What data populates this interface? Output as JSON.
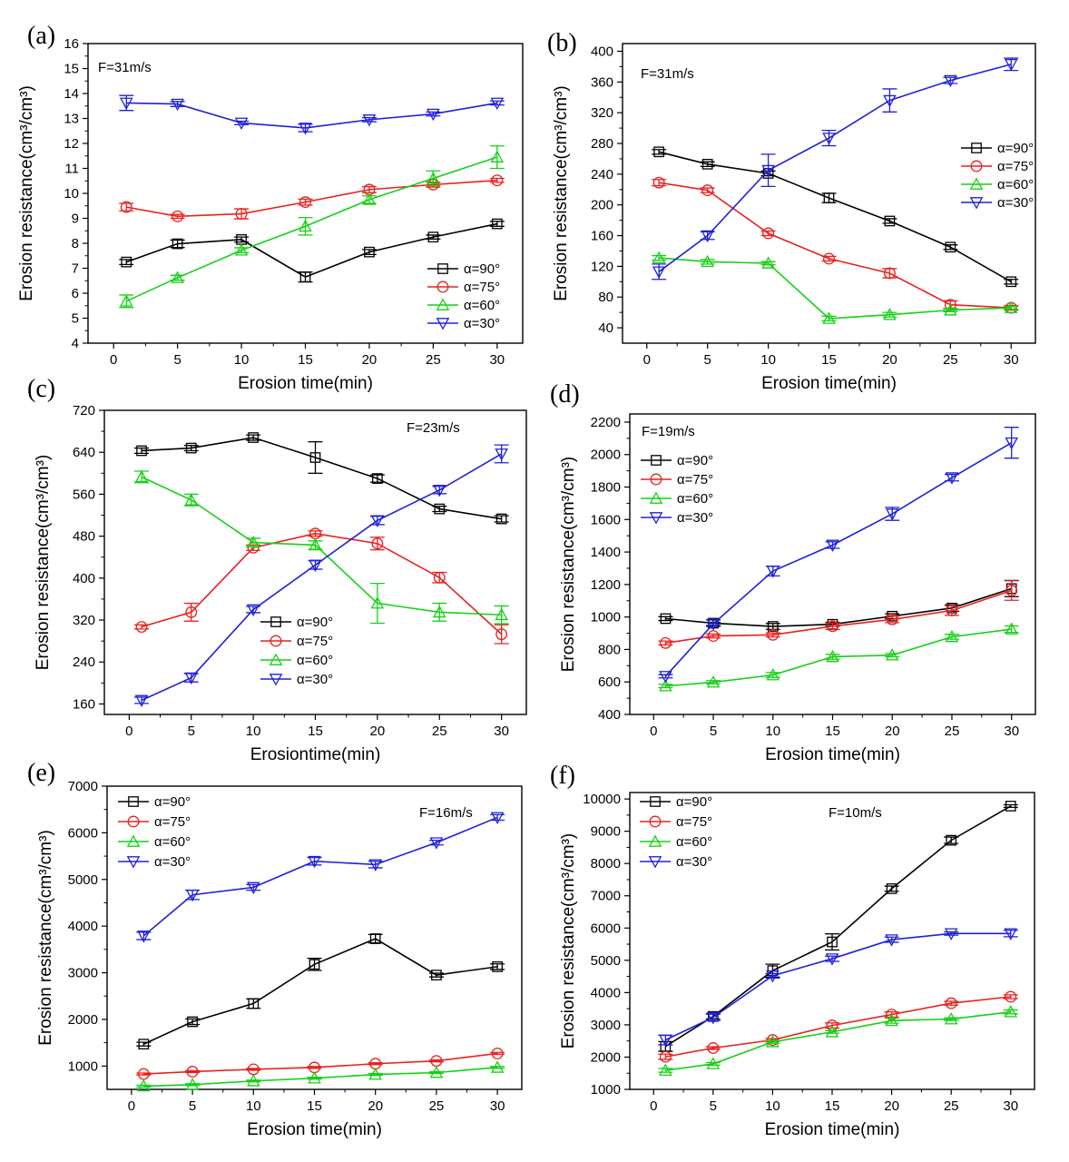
{
  "chart_data": [
    {
      "type": "line",
      "panel_label": "(a)",
      "annotation": "F=31m/s",
      "xlabel": "Erosion time(min)",
      "ylabel": "Erosion resistance(cm³/cm³)",
      "xlim": [
        -2,
        32
      ],
      "ylim": [
        4,
        16
      ],
      "xticks": [
        "0",
        "5",
        "10",
        "15",
        "20",
        "25",
        "30"
      ],
      "yticks": [
        "4",
        "5",
        "6",
        "7",
        "8",
        "9",
        "10",
        "11",
        "12",
        "13",
        "14",
        "15",
        "16"
      ],
      "x": [
        1,
        5,
        10,
        15,
        20,
        25,
        30
      ],
      "legend_position": "bottom-right",
      "series": [
        {
          "name": "α=90°",
          "color": "#000000",
          "marker": "square",
          "values": [
            7.25,
            7.98,
            8.15,
            6.65,
            7.65,
            8.25,
            8.78
          ],
          "errors": [
            0.1,
            0.15,
            0.1,
            0.2,
            0.1,
            0.08,
            0.1
          ]
        },
        {
          "name": "α=75°",
          "color": "#e8211e",
          "marker": "circle",
          "values": [
            9.45,
            9.08,
            9.18,
            9.65,
            10.15,
            10.35,
            10.52
          ],
          "errors": [
            0.15,
            0.08,
            0.2,
            0.12,
            0.12,
            0.1,
            0.08
          ]
        },
        {
          "name": "α=60°",
          "color": "#14d114",
          "marker": "triangle-up",
          "values": [
            5.68,
            6.62,
            7.72,
            8.68,
            9.75,
            10.6,
            11.45
          ],
          "errors": [
            0.25,
            0.1,
            0.1,
            0.35,
            0.15,
            0.3,
            0.45
          ]
        },
        {
          "name": "α=30°",
          "color": "#1f20d9",
          "marker": "triangle-down",
          "values": [
            13.62,
            13.58,
            12.82,
            12.62,
            12.95,
            13.18,
            13.62
          ],
          "errors": [
            0.3,
            0.1,
            0.07,
            0.15,
            0.08,
            0.08,
            0.08
          ]
        }
      ]
    },
    {
      "type": "line",
      "panel_label": "(b)",
      "annotation": "F=31m/s",
      "xlabel": "Erosion time(min)",
      "ylabel": "Erosion resistance(cm³/cm³)",
      "xlim": [
        -2,
        32
      ],
      "ylim": [
        20,
        410
      ],
      "xticks": [
        "0",
        "5",
        "10",
        "15",
        "20",
        "25",
        "30"
      ],
      "yticks": [
        "40",
        "80",
        "120",
        "160",
        "200",
        "240",
        "280",
        "320",
        "360",
        "400"
      ],
      "x": [
        1,
        5,
        10,
        15,
        20,
        25,
        30
      ],
      "legend_position": "right-middle",
      "series": [
        {
          "name": "α=90°",
          "color": "#000000",
          "marker": "square",
          "values": [
            269,
            253,
            241,
            209,
            179,
            145,
            100
          ],
          "errors": [
            3,
            3,
            3,
            6,
            3,
            3,
            3
          ]
        },
        {
          "name": "α=75°",
          "color": "#e8211e",
          "marker": "circle",
          "values": [
            229,
            219,
            163,
            130,
            111,
            70,
            66
          ],
          "errors": [
            4,
            3,
            3,
            3,
            6,
            5,
            3
          ]
        },
        {
          "name": "α=60°",
          "color": "#14d114",
          "marker": "triangle-up",
          "values": [
            131,
            126,
            124,
            52,
            57,
            63,
            66
          ],
          "errors": [
            3,
            3,
            2,
            3,
            3,
            2,
            2
          ]
        },
        {
          "name": "α=30°",
          "color": "#1f20d9",
          "marker": "triangle-down",
          "values": [
            113,
            160,
            245,
            287,
            336,
            362,
            383
          ],
          "errors": [
            10,
            5,
            21,
            10,
            15,
            4,
            8
          ]
        }
      ]
    },
    {
      "type": "line",
      "panel_label": "(c)",
      "annotation": "F=23m/s",
      "xlabel": "Erosiontime(min)",
      "ylabel": "Erosion resistance(cm³/cm³)",
      "xlim": [
        -2,
        32
      ],
      "ylim": [
        140,
        720
      ],
      "xticks": [
        "0",
        "5",
        "10",
        "15",
        "20",
        "25",
        "30"
      ],
      "yticks": [
        "160",
        "240",
        "320",
        "400",
        "480",
        "560",
        "640",
        "720"
      ],
      "x": [
        1,
        5,
        10,
        15,
        20,
        25,
        30
      ],
      "legend_position": "center-left",
      "series": [
        {
          "name": "α=90°",
          "color": "#000000",
          "marker": "square",
          "values": [
            643,
            648,
            668,
            630,
            590,
            532,
            513
          ],
          "errors": [
            5,
            5,
            5,
            30,
            7,
            5,
            6
          ]
        },
        {
          "name": "α=75°",
          "color": "#e8211e",
          "marker": "circle",
          "values": [
            307,
            335,
            458,
            485,
            466,
            401,
            293
          ],
          "errors": [
            4,
            17,
            5,
            5,
            12,
            10,
            18
          ]
        },
        {
          "name": "α=60°",
          "color": "#14d114",
          "marker": "triangle-up",
          "values": [
            593,
            549,
            468,
            463,
            352,
            335,
            330
          ],
          "errors": [
            11,
            11,
            8,
            8,
            38,
            17,
            17
          ]
        },
        {
          "name": "α=30°",
          "color": "#1f20d9",
          "marker": "triangle-down",
          "values": [
            167,
            210,
            340,
            425,
            510,
            568,
            637
          ],
          "errors": [
            6,
            8,
            6,
            8,
            8,
            7,
            17
          ]
        }
      ]
    },
    {
      "type": "line",
      "panel_label": "(d)",
      "annotation": "F=19m/s",
      "xlabel": "Erosion time(min)",
      "ylabel": "Erosion resistance(cm³/cm³)",
      "xlim": [
        -2,
        32
      ],
      "ylim": [
        400,
        2250
      ],
      "xticks": [
        "0",
        "5",
        "10",
        "15",
        "20",
        "25",
        "30"
      ],
      "yticks": [
        "400",
        "600",
        "800",
        "1000",
        "1200",
        "1400",
        "1600",
        "1800",
        "2000",
        "2200"
      ],
      "x": [
        1,
        5,
        10,
        15,
        20,
        25,
        30
      ],
      "legend_position": "top-left",
      "series": [
        {
          "name": "α=90°",
          "color": "#000000",
          "marker": "square",
          "values": [
            990,
            962,
            942,
            955,
            1005,
            1055,
            1175
          ],
          "errors": [
            12,
            20,
            18,
            12,
            15,
            20,
            50
          ]
        },
        {
          "name": "α=75°",
          "color": "#e8211e",
          "marker": "circle",
          "values": [
            840,
            883,
            890,
            943,
            985,
            1040,
            1163
          ],
          "errors": [
            12,
            12,
            12,
            20,
            20,
            30,
            60
          ]
        },
        {
          "name": "α=60°",
          "color": "#14d114",
          "marker": "triangle-up",
          "values": [
            575,
            598,
            643,
            755,
            765,
            878,
            925
          ],
          "errors": [
            10,
            10,
            15,
            15,
            10,
            15,
            20
          ]
        },
        {
          "name": "α=30°",
          "color": "#1f20d9",
          "marker": "triangle-down",
          "values": [
            635,
            958,
            1283,
            1443,
            1635,
            1858,
            2073
          ],
          "errors": [
            10,
            10,
            30,
            20,
            40,
            20,
            95
          ]
        }
      ]
    },
    {
      "type": "line",
      "panel_label": "(e)",
      "annotation": "F=16m/s",
      "xlabel": "Erosion time(min)",
      "ylabel": "Erosion resistance(cm³/cm³)",
      "xlim": [
        -2,
        32
      ],
      "ylim": [
        500,
        7000
      ],
      "xticks": [
        "0",
        "5",
        "10",
        "15",
        "20",
        "25",
        "30"
      ],
      "yticks": [
        "1000",
        "2000",
        "3000",
        "4000",
        "5000",
        "6000",
        "7000"
      ],
      "x": [
        1,
        5,
        10,
        15,
        20,
        25,
        30
      ],
      "legend_position": "top-left",
      "series": [
        {
          "name": "α=90°",
          "color": "#000000",
          "marker": "square",
          "values": [
            1470,
            1950,
            2340,
            3180,
            3730,
            2950,
            3130
          ],
          "errors": [
            40,
            60,
            100,
            130,
            90,
            40,
            60
          ]
        },
        {
          "name": "α=75°",
          "color": "#e8211e",
          "marker": "circle",
          "values": [
            830,
            880,
            930,
            970,
            1050,
            1110,
            1270
          ],
          "errors": [
            20,
            20,
            20,
            20,
            20,
            20,
            20
          ]
        },
        {
          "name": "α=60°",
          "color": "#14d114",
          "marker": "triangle-up",
          "values": [
            570,
            600,
            680,
            740,
            820,
            860,
            970
          ],
          "errors": [
            20,
            20,
            20,
            20,
            20,
            20,
            20
          ]
        },
        {
          "name": "α=30°",
          "color": "#1f20d9",
          "marker": "triangle-down",
          "values": [
            3790,
            4670,
            4830,
            5390,
            5320,
            5790,
            6330
          ],
          "errors": [
            80,
            100,
            60,
            80,
            70,
            50,
            60
          ]
        }
      ]
    },
    {
      "type": "line",
      "panel_label": "(f)",
      "annotation": "F=10m/s",
      "xlabel": "Erosion time(min)",
      "ylabel": "Erosion resistance(cm³/cm³)",
      "xlim": [
        -2,
        32
      ],
      "ylim": [
        1000,
        10200
      ],
      "xticks": [
        "0",
        "5",
        "10",
        "15",
        "20",
        "25",
        "30"
      ],
      "yticks": [
        "1000",
        "2000",
        "3000",
        "4000",
        "5000",
        "6000",
        "7000",
        "8000",
        "9000",
        "10000"
      ],
      "x": [
        1,
        5,
        10,
        15,
        20,
        25,
        30
      ],
      "legend_position": "top-left",
      "series": [
        {
          "name": "α=90°",
          "color": "#000000",
          "marker": "square",
          "values": [
            2330,
            3260,
            4680,
            5570,
            7220,
            8720,
            9780
          ],
          "errors": [
            150,
            80,
            200,
            250,
            80,
            100,
            40
          ]
        },
        {
          "name": "α=75°",
          "color": "#e8211e",
          "marker": "circle",
          "values": [
            2010,
            2280,
            2530,
            2980,
            3320,
            3670,
            3870
          ],
          "errors": [
            80,
            40,
            40,
            80,
            80,
            60,
            60
          ]
        },
        {
          "name": "α=60°",
          "color": "#14d114",
          "marker": "triangle-up",
          "values": [
            1590,
            1790,
            2470,
            2780,
            3130,
            3180,
            3400
          ],
          "errors": [
            60,
            40,
            40,
            40,
            80,
            40,
            60
          ]
        },
        {
          "name": "α=30°",
          "color": "#1f20d9",
          "marker": "triangle-down",
          "values": [
            2530,
            3230,
            4520,
            5050,
            5640,
            5830,
            5830
          ],
          "errors": [
            150,
            100,
            70,
            80,
            80,
            50,
            100
          ]
        }
      ]
    }
  ]
}
